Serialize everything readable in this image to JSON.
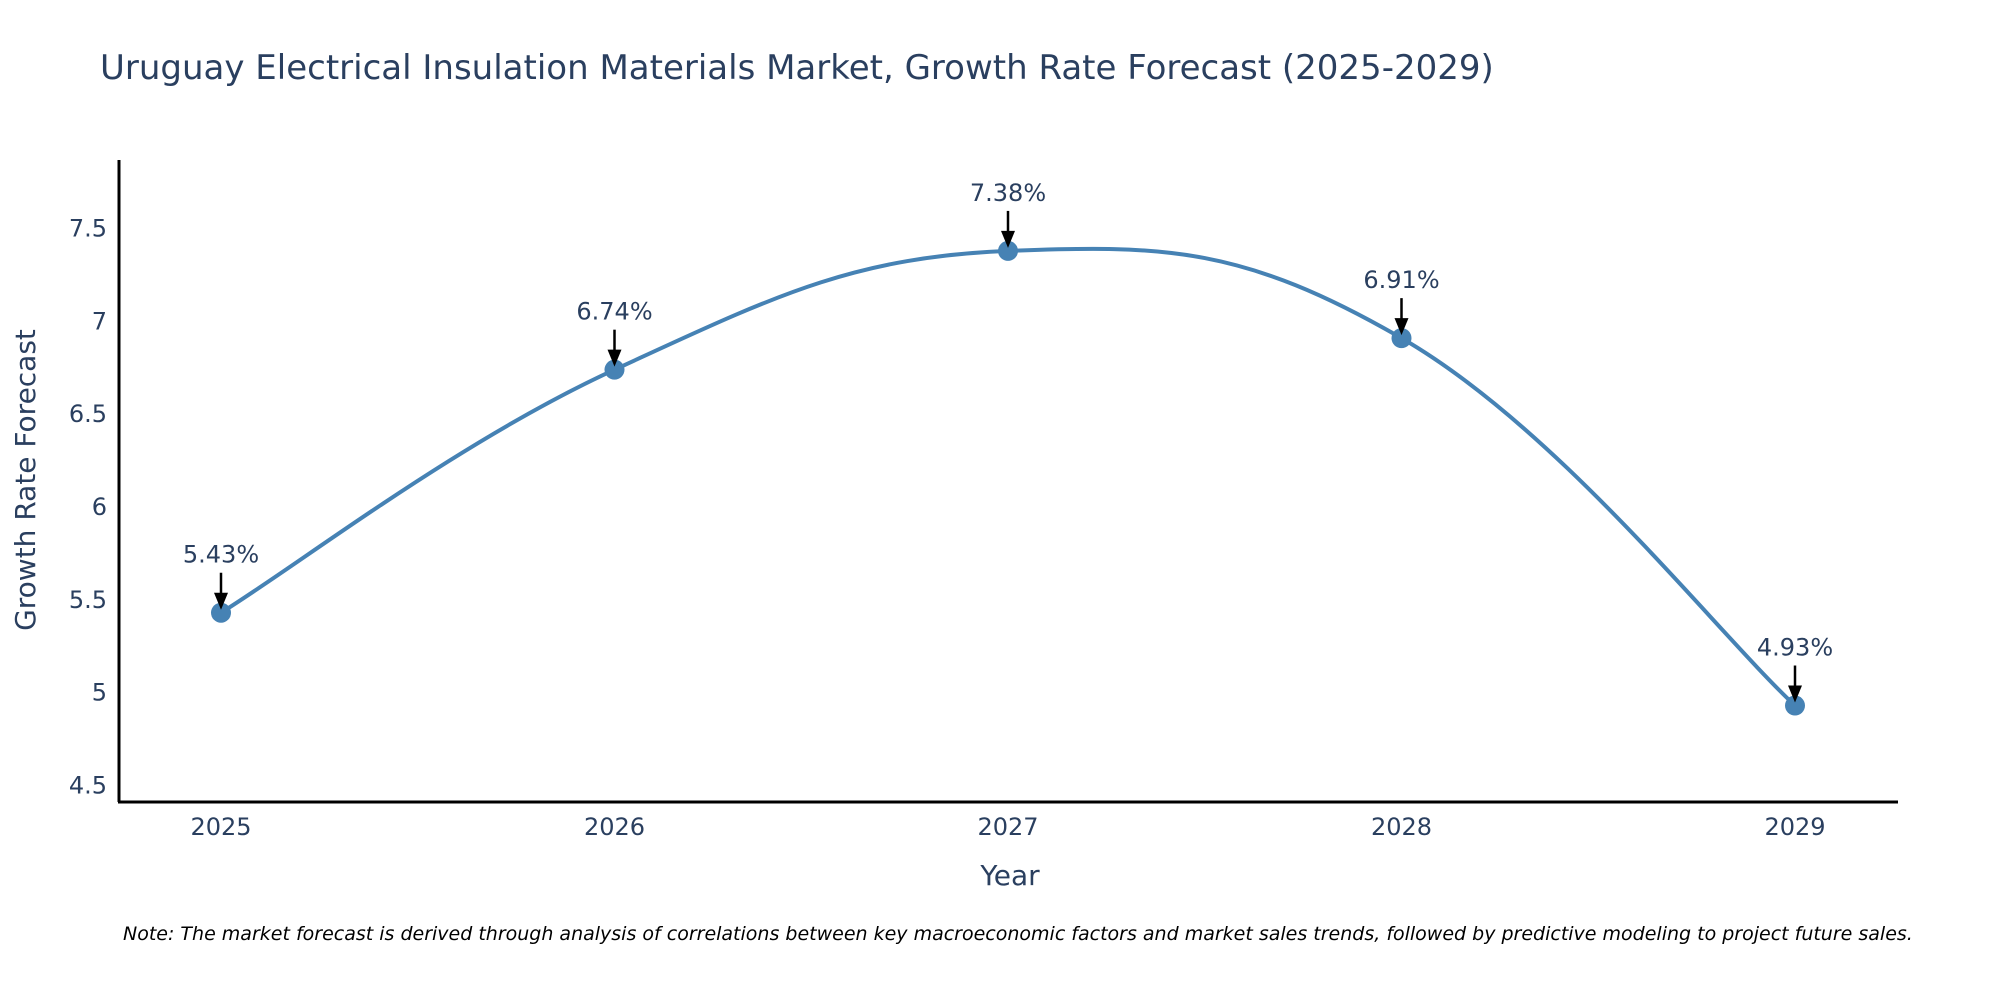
{
  "chart_data": {
    "type": "line",
    "title": "Uruguay Electrical Insulation Materials Market, Growth Rate Forecast (2025-2029)",
    "xlabel": "Year",
    "ylabel": "Growth Rate Forecast",
    "categories": [
      "2025",
      "2026",
      "2027",
      "2028",
      "2029"
    ],
    "values": [
      5.43,
      6.74,
      7.38,
      6.91,
      4.93
    ],
    "data_labels": [
      "5.43%",
      "6.74%",
      "7.38%",
      "6.91%",
      "4.93%"
    ],
    "y_ticks": [
      4.5,
      5,
      5.5,
      6,
      6.5,
      7,
      7.5
    ],
    "y_tick_labels": [
      "4.5",
      "5",
      "5.5",
      "6",
      "6.5",
      "7",
      "7.5"
    ],
    "ylim": [
      4.41,
      7.87
    ],
    "grid": false,
    "line_shape": "spline",
    "note": "Note: The market forecast is derived through analysis of correlations between key macroeconomic factors and market sales trends, followed by predictive modeling to project future sales.",
    "colors": {
      "line": "#4682b4",
      "marker": "#4682b4",
      "text": "#2a3f5f",
      "axis": "#000000",
      "arrow": "#000000"
    }
  }
}
